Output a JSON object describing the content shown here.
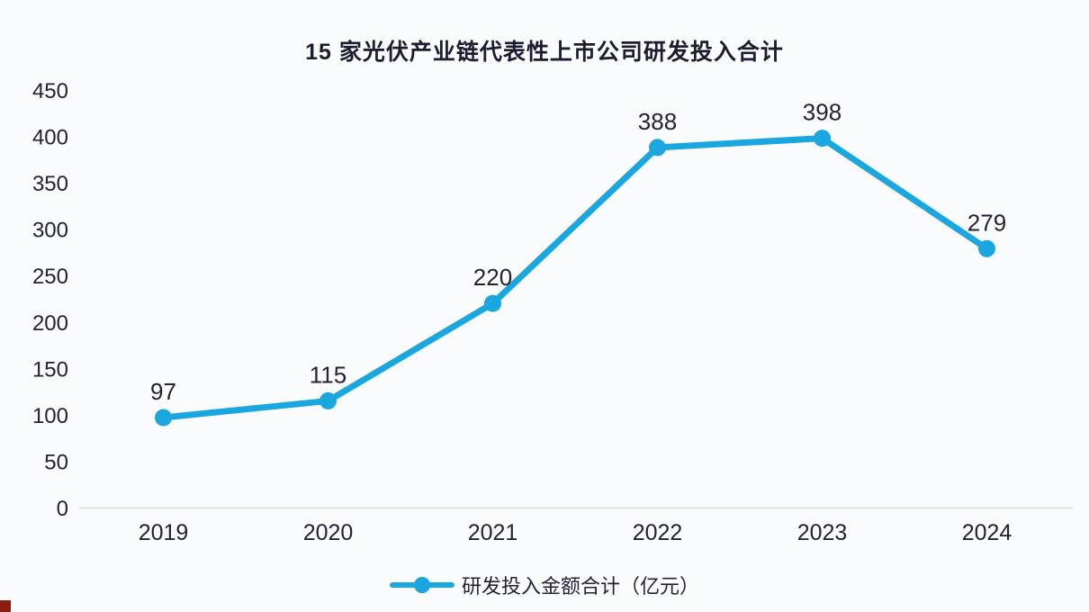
{
  "chart_data": {
    "type": "line",
    "title": "15 家光伏产业链代表性上市公司研发投入合计",
    "categories": [
      "2019",
      "2020",
      "2021",
      "2022",
      "2023",
      "2024"
    ],
    "series": [
      {
        "name": "研发投入金额合计（亿元）",
        "values": [
          97,
          115,
          220,
          388,
          398,
          279
        ]
      }
    ],
    "yticks": [
      0,
      50,
      100,
      150,
      200,
      250,
      300,
      350,
      400,
      450
    ],
    "ylim": [
      0,
      450
    ],
    "grid": false,
    "legend_position": "bottom",
    "data_labels_shown": true,
    "line_color": "#1aa7e0",
    "marker": "circle",
    "text_color": "#272135",
    "axis_line_color": "#d9dce3"
  },
  "decorations": {
    "corner_mark_color": "#8c1b13"
  }
}
